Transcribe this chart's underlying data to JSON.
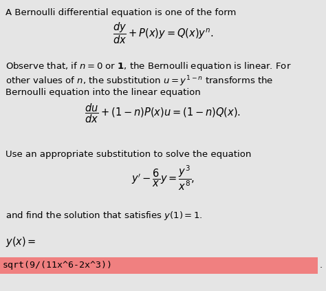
{
  "bg_color": "#e5e5e5",
  "answer_bg_color": "#f08080",
  "text_color": "#000000",
  "font_size_body": 9.5,
  "font_size_math": 10.5,
  "line1": "A Bernoulli differential equation is one of the form",
  "line2_math": "$\\dfrac{dy}{dx} + P(x)y = Q(x)y^n.$",
  "line3": "Observe that, if $n = 0$ or $\\mathbf{1}$, the Bernoulli equation is linear. For",
  "line4": "other values of $n$, the substitution $u = y^{1-n}$ transforms the",
  "line5": "Bernoulli equation into the linear equation",
  "line6_math": "$\\dfrac{du}{dx} + (1-n)P(x)u = (1-n)Q(x).$",
  "line7": "Use an appropriate substitution to solve the equation",
  "line8_math": "$y' - \\dfrac{6}{x}y = \\dfrac{y^3}{x^8},$",
  "line9": "and find the solution that satisfies $y(1) = 1$.",
  "line10_math": "$y(x) =$",
  "answer": "sqrt(9/(11x^6-2x^3))",
  "period": "."
}
